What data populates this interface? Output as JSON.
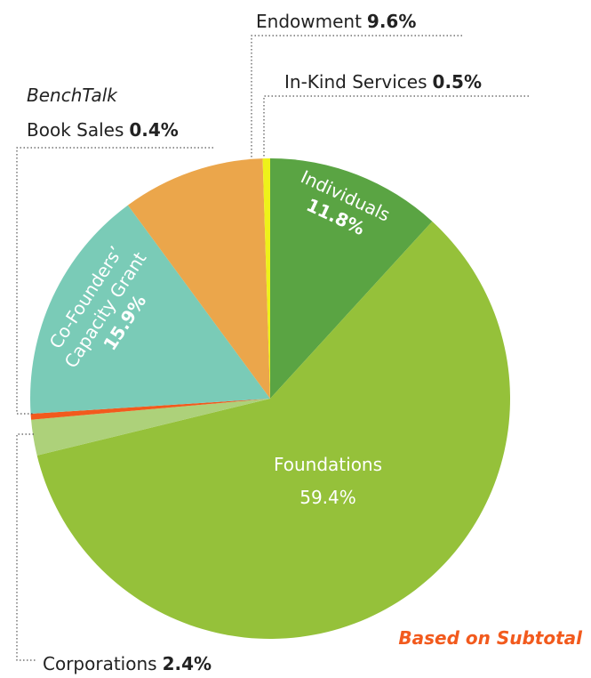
{
  "chart_data": {
    "type": "pie",
    "start_angle_deg": 0,
    "direction": "clockwise",
    "slices": [
      {
        "name": "Individuals",
        "value": 11.8,
        "value_label": "11.8%",
        "color": "#5aa443"
      },
      {
        "name": "Foundations",
        "value": 59.4,
        "value_label": "59.4%",
        "color": "#95c13a"
      },
      {
        "name": "Corporations",
        "value": 2.4,
        "value_label": "2.4%",
        "color": "#add17a"
      },
      {
        "name": "Book Sales",
        "name_prefix": "BenchTalk",
        "value": 0.4,
        "value_label": "0.4%",
        "color": "#f25a1d"
      },
      {
        "name": "Co-Founders’ Capacity Grant",
        "name_line1": "Co-Founders’",
        "name_line2": "Capacity Grant",
        "value": 15.9,
        "value_label": "15.9%",
        "color": "#7acbb7"
      },
      {
        "name": "Endowment",
        "value": 9.6,
        "value_label": "9.6%",
        "color": "#eba64b"
      },
      {
        "name": "In-Kind Services",
        "value": 0.5,
        "value_label": "0.5%",
        "color": "#eef21a"
      }
    ],
    "note": "Based on Subtotal",
    "note_color": "#f25a1d"
  }
}
